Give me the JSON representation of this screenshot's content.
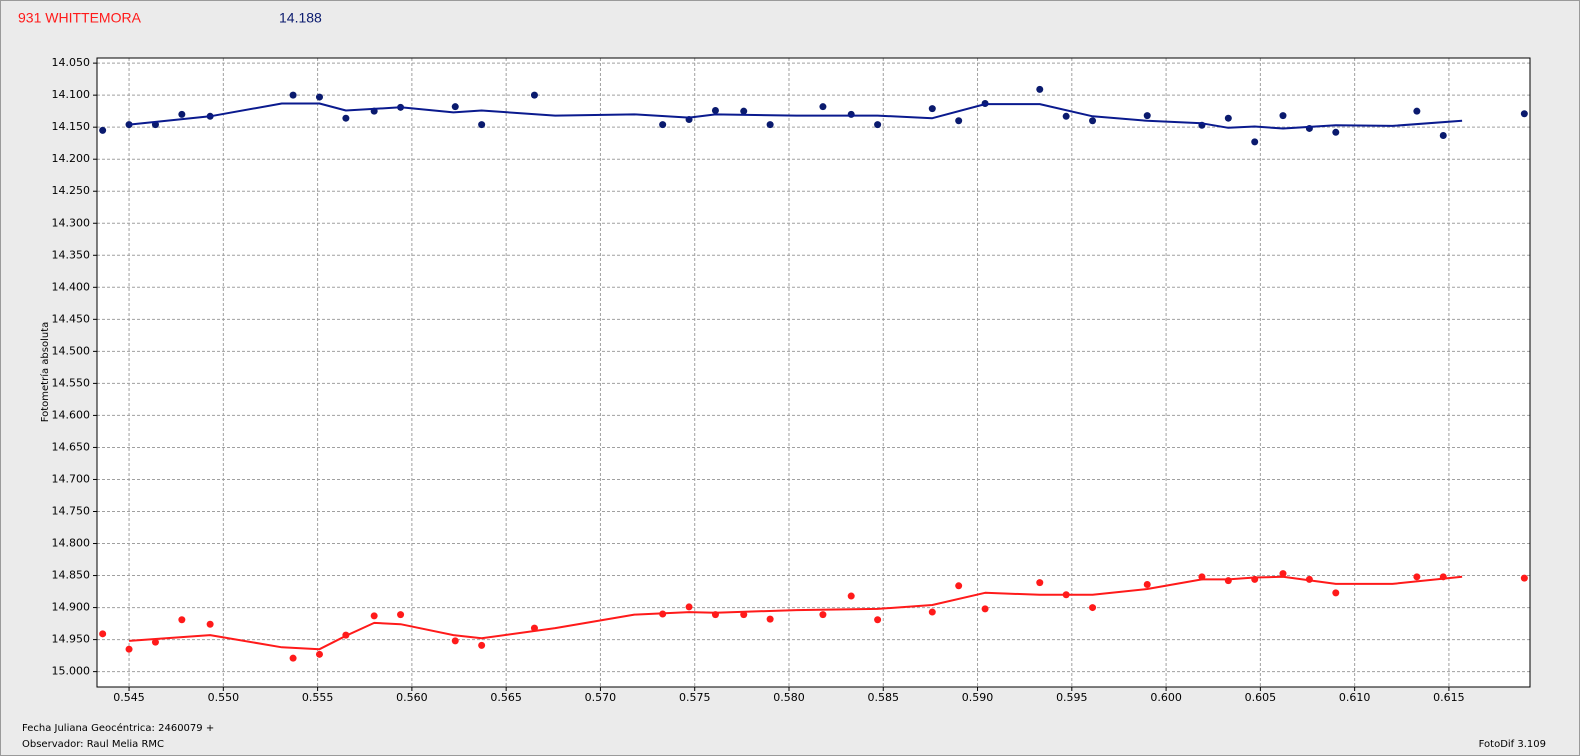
{
  "chart_data": {
    "type": "scatter",
    "title": "931 WHITTEMORA",
    "subtitle": "14.188",
    "ylabel": "Fotometría absoluta",
    "footer_left": [
      "Fecha Juliana Geocéntrica: 2460079 +",
      "Observador: Raul Melia RMC"
    ],
    "footer_right": "FotoDif 3.109",
    "xlim": [
      0.5433,
      0.6193
    ],
    "ylim": [
      14.042,
      15.024
    ],
    "y_inverted": true,
    "grid": true,
    "xticks": [
      0.545,
      {
        "value": 0.55,
        "label": "0.550"
      },
      0.555,
      {
        "value": 0.56,
        "label": "0.560"
      },
      0.565,
      {
        "value": 0.57,
        "label": "0.570"
      },
      0.575,
      {
        "value": 0.58,
        "label": "0.580"
      },
      0.585,
      {
        "value": 0.59,
        "label": "0.590"
      },
      0.595,
      {
        "value": 0.6,
        "label": "0.600"
      },
      0.605,
      {
        "value": 0.61,
        "label": "0.610"
      },
      0.615
    ],
    "yticks": [
      {
        "value": 14.05,
        "label": "14.050"
      },
      {
        "value": 14.1,
        "label": "14.100"
      },
      {
        "value": 14.15,
        "label": "14.150"
      },
      {
        "value": 14.2,
        "label": "14.200"
      },
      {
        "value": 14.25,
        "label": "14.250"
      },
      {
        "value": 14.3,
        "label": "14.300"
      },
      {
        "value": 14.35,
        "label": "14.350"
      },
      {
        "value": 14.4,
        "label": "14.400"
      },
      {
        "value": 14.45,
        "label": "14.450"
      },
      {
        "value": 14.5,
        "label": "14.500"
      },
      {
        "value": 14.55,
        "label": "14.550"
      },
      {
        "value": 14.6,
        "label": "14.600"
      },
      {
        "value": 14.65,
        "label": "14.650"
      },
      {
        "value": 14.7,
        "label": "14.700"
      },
      {
        "value": 14.75,
        "label": "14.750"
      },
      {
        "value": 14.8,
        "label": "14.800"
      },
      {
        "value": 14.85,
        "label": "14.850"
      },
      {
        "value": 14.9,
        "label": "14.900"
      },
      {
        "value": 14.95,
        "label": "14.950"
      },
      {
        "value": 15,
        "label": "15.000"
      }
    ],
    "series": [
      {
        "mode": "markers",
        "color": "#0a1a6e",
        "x": [
          0.5436,
          0.545,
          0.5464,
          0.5478,
          0.5493,
          0.5537,
          0.5551,
          0.5565,
          0.558,
          0.5594,
          0.5623,
          0.5637,
          0.5665,
          0.5733,
          0.5747,
          0.5761,
          0.5776,
          0.579,
          0.5818,
          0.5833,
          0.5847,
          0.5876,
          0.589,
          0.5904,
          0.5933,
          0.5947,
          0.5961,
          0.599,
          0.6019,
          0.6033,
          0.6047,
          0.6062,
          0.6076,
          0.609,
          0.6133,
          0.6147,
          0.619
        ],
        "values": [
          14.155,
          14.146,
          14.146,
          14.13,
          14.133,
          14.1,
          14.103,
          14.136,
          14.125,
          14.119,
          14.118,
          14.146,
          14.1,
          14.146,
          14.138,
          14.124,
          14.125,
          14.146,
          14.118,
          14.13,
          14.146,
          14.121,
          14.14,
          14.113,
          14.091,
          14.133,
          14.14,
          14.132,
          14.147,
          14.136,
          14.173,
          14.132,
          14.152,
          14.158,
          14.125,
          14.163,
          14.129
        ]
      },
      {
        "mode": "line",
        "color": "#0a1a8e",
        "x": [
          0.545,
          0.5493,
          0.5531,
          0.5551,
          0.5565,
          0.5594,
          0.5622,
          0.5637,
          0.5676,
          0.5718,
          0.5747,
          0.5761,
          0.5804,
          0.5847,
          0.5876,
          0.5904,
          0.5933,
          0.5961,
          0.599,
          0.6019,
          0.6033,
          0.6047,
          0.6062,
          0.609,
          0.612,
          0.6157
        ],
        "values": [
          14.146,
          14.133,
          14.113,
          14.113,
          14.124,
          14.119,
          14.127,
          14.124,
          14.132,
          14.13,
          14.135,
          14.13,
          14.132,
          14.132,
          14.136,
          14.114,
          14.114,
          14.133,
          14.14,
          14.144,
          14.151,
          14.149,
          14.152,
          14.147,
          14.148,
          14.14
        ]
      },
      {
        "mode": "markers",
        "color": "#ff1a1a",
        "x": [
          0.5436,
          0.545,
          0.5464,
          0.5478,
          0.5493,
          0.5537,
          0.5551,
          0.5565,
          0.558,
          0.5594,
          0.5623,
          0.5637,
          0.5665,
          0.5733,
          0.5747,
          0.5761,
          0.5776,
          0.579,
          0.5818,
          0.5833,
          0.5847,
          0.5876,
          0.589,
          0.5904,
          0.5933,
          0.5947,
          0.5961,
          0.599,
          0.6019,
          0.6033,
          0.6047,
          0.6062,
          0.6076,
          0.609,
          0.6133,
          0.6147,
          0.619
        ],
        "values": [
          14.941,
          14.965,
          14.954,
          14.919,
          14.926,
          14.979,
          14.973,
          14.943,
          14.913,
          14.911,
          14.952,
          14.959,
          14.932,
          14.91,
          14.899,
          14.911,
          14.911,
          14.918,
          14.911,
          14.882,
          14.919,
          14.907,
          14.866,
          14.902,
          14.861,
          14.88,
          14.9,
          14.864,
          14.852,
          14.858,
          14.856,
          14.847,
          14.856,
          14.877,
          14.852,
          14.852,
          14.854
        ]
      },
      {
        "mode": "line",
        "color": "#ff1a1a",
        "x": [
          0.545,
          0.5493,
          0.5531,
          0.5551,
          0.5565,
          0.558,
          0.5594,
          0.5622,
          0.5637,
          0.5676,
          0.5718,
          0.5747,
          0.5761,
          0.5804,
          0.5847,
          0.5876,
          0.5904,
          0.5933,
          0.5961,
          0.599,
          0.6019,
          0.6033,
          0.6047,
          0.6062,
          0.609,
          0.612,
          0.6157
        ],
        "values": [
          14.952,
          14.943,
          14.962,
          14.965,
          14.944,
          14.924,
          14.926,
          14.943,
          14.948,
          14.932,
          14.911,
          14.907,
          14.908,
          14.904,
          14.902,
          14.896,
          14.877,
          14.88,
          14.88,
          14.871,
          14.856,
          14.856,
          14.853,
          14.852,
          14.863,
          14.863,
          14.852
        ]
      }
    ]
  }
}
